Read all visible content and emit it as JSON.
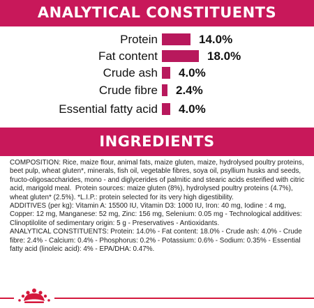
{
  "analytical": {
    "title": "ANALYTICAL CONSTITUENTS",
    "bar_color": "#b8185c",
    "items": [
      {
        "label": "Protein",
        "value": "14.0%",
        "percent": 14.0
      },
      {
        "label": "Fat content",
        "value": "18.0%",
        "percent": 18.0
      },
      {
        "label": "Crude ash",
        "value": "4.0%",
        "percent": 4.0
      },
      {
        "label": "Crude fibre",
        "value": "2.4%",
        "percent": 2.4
      },
      {
        "label": "Essential fatty acid",
        "value": "4.0%",
        "percent": 4.0
      }
    ]
  },
  "ingredients": {
    "title": "INGREDIENTS",
    "paragraphs": [
      "COMPOSITION: Rice, maize flour, animal fats, maize gluten, maize, hydrolysed poultry proteins, beet pulp, wheat gluten*, minerals, fish oil, vegetable fibres, soya oil, psyllium husks and seeds, fructo-oligosaccharides, mono - and diglycerides of palmitic and stearic acids esterified with citric acid, marigold meal.  Protein sources: maize gluten (8%), hydrolysed poultry proteins (4.7%), wheat gluten* (2.5%). *L.I.P.: protein selected for its very high digestibility.",
      "ADDITIVES (per kg): Vitamin A: 15500 IU, Vitamin D3: 1000 IU, Iron: 40 mg, Iodine : 4 mg, Copper: 12 mg, Manganese: 52 mg, Zinc: 156 mg, Selenium: 0.05 mg - Technological additives: Clinoptilolite of sedimentary origin: 5 g - Preservatives - Antioxidants.",
      "ANALYTICAL CONSTITUENTS: Protein: 14.0% - Fat content: 18.0% - Crude ash: 4.0% - Crude fibre: 2.4% - Calcium: 0.4% - Phosphorus: 0.2% - Potassium: 0.6% - Sodium: 0.35% - Essential fatty acid (linoleic acid): 4% - EPA/DHA: 0.47%."
    ]
  },
  "footer": {
    "logo_icon": "royal-canin-crown-icon",
    "line_color": "#d4183c",
    "crown_color": "#d4183c"
  }
}
